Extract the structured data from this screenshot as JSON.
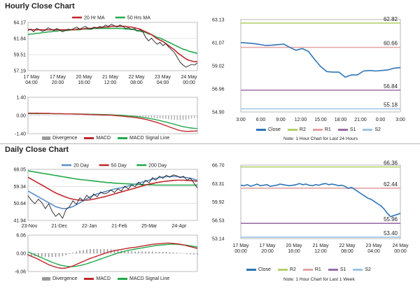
{
  "hourly_section": {
    "title": "Hourly Close Chart"
  },
  "daily_section": {
    "title": "Daily Close Chart"
  },
  "colors": {
    "price": "#1f1f1f",
    "ma_short": "#c0262b",
    "ma_long": "#22a94b",
    "macd": "#c0262b",
    "signal": "#22a94b",
    "divergence": "#9a9a9a",
    "close_blue": "#2e75b6",
    "r2": "#b5cf6b",
    "r1": "#e3a3a3",
    "s1": "#9b6ea6",
    "s2": "#9dc3e6",
    "ma20_day": "#5b8ec9",
    "grid": "#c8c8c8"
  },
  "chart_data": [
    {
      "id": "hourly_price",
      "type": "line",
      "title": "",
      "legend": [
        "20 Hr MA",
        "50 Hrs MA"
      ],
      "y_ticks": [
        "64.17",
        "61.84",
        "59.51",
        "57.19"
      ],
      "ylim": [
        57.19,
        64.17
      ],
      "x_ticks": [
        "17 May\n04:00",
        "17 May\n20:00",
        "20 May\n16:00",
        "21 May\n12:00",
        "22 May\n08:00",
        "23 May\n04:00",
        "24 May\n00:00"
      ],
      "series": [
        {
          "name": "Close",
          "values": [
            63.0,
            63.2,
            62.8,
            63.3,
            63.1,
            62.9,
            63.0,
            63.4,
            63.2,
            63.0,
            63.3,
            63.1,
            62.8,
            63.0,
            63.2,
            63.1,
            63.3,
            63.5,
            63.2,
            63.4,
            63.6,
            63.3,
            63.2,
            63.5,
            63.3,
            63.6,
            63.4,
            63.8,
            63.6,
            63.9,
            63.7,
            63.5,
            63.8,
            63.6,
            63.3,
            63.4,
            63.1,
            63.3,
            62.9,
            63.1,
            62.8,
            62.0,
            61.5,
            61.9,
            61.4,
            61.0,
            61.3,
            60.8,
            61.1,
            60.6,
            60.2,
            59.8,
            59.1,
            58.4,
            58.0,
            57.7,
            57.9,
            58.1,
            58.0,
            58.3
          ]
        },
        {
          "name": "20 Hr MA",
          "values": [
            63.2,
            63.1,
            63.1,
            63.1,
            63.1,
            63.1,
            63.1,
            63.1,
            63.1,
            63.1,
            63.1,
            63.1,
            63.1,
            63.1,
            63.1,
            63.1,
            63.1,
            63.2,
            63.2,
            63.2,
            63.3,
            63.3,
            63.3,
            63.4,
            63.4,
            63.4,
            63.5,
            63.5,
            63.5,
            63.6,
            63.6,
            63.6,
            63.6,
            63.6,
            63.6,
            63.5,
            63.5,
            63.4,
            63.3,
            63.2,
            63.0,
            62.8,
            62.6,
            62.4,
            62.1,
            61.8,
            61.6,
            61.4,
            61.1,
            60.8,
            60.5,
            60.2,
            59.8,
            59.5,
            59.2,
            58.9,
            58.7,
            58.6,
            58.5,
            58.5
          ]
        },
        {
          "name": "50 Hrs MA",
          "values": [
            62.4,
            62.5,
            62.5,
            62.6,
            62.6,
            62.7,
            62.7,
            62.8,
            62.8,
            62.9,
            62.9,
            63.0,
            63.0,
            63.0,
            63.0,
            63.1,
            63.1,
            63.1,
            63.1,
            63.2,
            63.2,
            63.2,
            63.2,
            63.3,
            63.3,
            63.3,
            63.3,
            63.3,
            63.3,
            63.3,
            63.3,
            63.3,
            63.3,
            63.3,
            63.2,
            63.2,
            63.2,
            63.1,
            63.0,
            62.9,
            62.8,
            62.7,
            62.5,
            62.4,
            62.2,
            62.0,
            61.9,
            61.7,
            61.5,
            61.3,
            61.1,
            60.9,
            60.7,
            60.5,
            60.3,
            60.2,
            60.0,
            59.9,
            59.8,
            59.7
          ]
        }
      ]
    },
    {
      "id": "hourly_macd",
      "type": "line",
      "legend": [
        "Divergence",
        "MACD",
        "MACD Signal Line"
      ],
      "y_ticks": [
        "1.40",
        "0.00",
        "-1.40"
      ],
      "ylim": [
        -1.4,
        1.4
      ],
      "series": [
        {
          "name": "MACD",
          "values": [
            0.18,
            0.18,
            0.17,
            0.18,
            0.17,
            0.16,
            0.16,
            0.16,
            0.15,
            0.14,
            0.14,
            0.14,
            0.13,
            0.12,
            0.12,
            0.12,
            0.11,
            0.1,
            0.1,
            0.09,
            0.08,
            0.08,
            0.07,
            0.06,
            0.06,
            0.05,
            0.04,
            0.04,
            0.03,
            0.02,
            0.0,
            -0.02,
            -0.04,
            -0.06,
            -0.08,
            -0.1,
            -0.12,
            -0.15,
            -0.18,
            -0.22,
            -0.26,
            -0.3,
            -0.36,
            -0.42,
            -0.48,
            -0.55,
            -0.62,
            -0.7,
            -0.78,
            -0.86,
            -0.94,
            -1.02,
            -1.1,
            -1.16,
            -1.2,
            -1.22,
            -1.22,
            -1.21,
            -1.2,
            -1.18
          ]
        },
        {
          "name": "MACD Signal Line",
          "values": [
            0.14,
            0.14,
            0.14,
            0.14,
            0.14,
            0.14,
            0.14,
            0.14,
            0.14,
            0.13,
            0.13,
            0.13,
            0.13,
            0.12,
            0.12,
            0.12,
            0.12,
            0.11,
            0.11,
            0.1,
            0.1,
            0.1,
            0.09,
            0.09,
            0.08,
            0.08,
            0.07,
            0.07,
            0.06,
            0.05,
            0.04,
            0.03,
            0.02,
            0.01,
            -0.01,
            -0.03,
            -0.05,
            -0.07,
            -0.09,
            -0.12,
            -0.15,
            -0.18,
            -0.22,
            -0.26,
            -0.3,
            -0.35,
            -0.4,
            -0.45,
            -0.5,
            -0.56,
            -0.62,
            -0.68,
            -0.74,
            -0.8,
            -0.86,
            -0.9,
            -0.94,
            -0.97,
            -0.99,
            -1.0
          ]
        }
      ]
    },
    {
      "id": "hourly_intraday",
      "type": "line",
      "y_ticks": [
        "63.13",
        "61.07",
        "59.02",
        "56.96",
        "54.90"
      ],
      "ylim": [
        54.9,
        63.13
      ],
      "x_ticks": [
        "3:00",
        "6:00",
        "9:00",
        "12:00",
        "15:00",
        "18:00",
        "21:00",
        "0:00",
        "3:00"
      ],
      "levels": [
        {
          "name": "R2",
          "value": 62.82,
          "label": "62.82"
        },
        {
          "name": "R1",
          "value": 60.66,
          "label": "60.66"
        },
        {
          "name": "S1",
          "value": 56.84,
          "label": "56.84"
        },
        {
          "name": "S2",
          "value": 55.18,
          "label": "55.18"
        }
      ],
      "legend": [
        "Close",
        "R2",
        "R1",
        "S1",
        "S2"
      ],
      "note": "Note: 1 Hour Chart for Last 24 Hours",
      "series": [
        {
          "name": "Close",
          "values": [
            61.08,
            61.05,
            61.0,
            60.92,
            60.82,
            60.85,
            60.9,
            60.95,
            60.65,
            60.4,
            60.55,
            60.3,
            59.6,
            58.95,
            58.5,
            58.45,
            58.45,
            58.0,
            58.2,
            58.2,
            58.55,
            58.6,
            58.55,
            58.6,
            58.65,
            58.8,
            58.85
          ]
        }
      ]
    },
    {
      "id": "daily_price",
      "type": "line",
      "legend": [
        "20 Day",
        "50 Day",
        "200 Day"
      ],
      "y_ticks": [
        "68.05",
        "59.34",
        "50.64",
        "41.94"
      ],
      "ylim": [
        41.94,
        68.05
      ],
      "x_ticks": [
        "23-Nov",
        "21-Dec",
        "22-Jan",
        "21-Feb",
        "25-Mar",
        "24-Apr"
      ],
      "series": [
        {
          "name": "Close",
          "values": [
            54.6,
            52.2,
            50.5,
            52.8,
            51.0,
            48.0,
            50.5,
            46.5,
            44.0,
            45.5,
            43.0,
            47.5,
            49.0,
            52.0,
            50.2,
            53.5,
            52.0,
            54.8,
            53.0,
            55.5,
            54.0,
            56.5,
            55.5,
            56.0,
            57.5,
            56.2,
            58.0,
            57.0,
            59.5,
            58.0,
            60.0,
            59.2,
            61.5,
            60.0,
            62.5,
            61.2,
            63.8,
            62.5,
            64.5,
            63.5,
            65.0,
            64.0,
            65.2,
            64.8,
            63.8,
            64.5,
            62.5,
            63.5,
            61.0,
            58.5
          ]
        },
        {
          "name": "20 Day",
          "values": [
            57.0,
            56.0,
            55.0,
            54.0,
            53.0,
            52.0,
            51.0,
            50.0,
            49.0,
            48.5,
            48.0,
            48.0,
            48.5,
            49.0,
            50.0,
            51.0,
            52.0,
            53.0,
            54.0,
            54.8,
            55.5,
            56.0,
            56.5,
            57.0,
            57.5,
            58.0,
            58.3,
            58.6,
            59.0,
            59.5,
            60.0,
            60.5,
            61.0,
            61.5,
            62.0,
            62.5,
            63.0,
            63.4,
            63.8,
            64.1,
            64.3,
            64.4,
            64.4,
            64.3,
            64.2,
            64.0,
            63.8,
            63.5,
            63.0,
            62.5
          ]
        },
        {
          "name": "50 Day",
          "values": [
            64.0,
            63.0,
            62.0,
            61.0,
            60.0,
            59.0,
            58.0,
            57.0,
            56.0,
            55.2,
            54.5,
            53.8,
            53.2,
            52.8,
            52.5,
            52.3,
            52.2,
            52.3,
            52.5,
            52.8,
            53.2,
            53.6,
            54.0,
            54.5,
            55.0,
            55.5,
            56.0,
            56.5,
            57.0,
            57.5,
            58.0,
            58.5,
            59.0,
            59.5,
            60.0,
            60.5,
            60.8,
            61.2,
            61.5,
            61.8,
            62.0,
            62.2,
            62.4,
            62.5,
            62.5,
            62.5,
            62.4,
            62.3,
            62.2,
            62.0
          ]
        },
        {
          "name": "200 Day",
          "values": [
            67.3,
            67.0,
            66.7,
            66.4,
            66.1,
            65.8,
            65.5,
            65.2,
            64.9,
            64.6,
            64.3,
            64.0,
            63.7,
            63.4,
            63.1,
            62.9,
            62.7,
            62.5,
            62.3,
            62.1,
            61.9,
            61.7,
            61.5,
            61.3,
            61.2,
            61.0,
            60.9,
            60.8,
            60.7,
            60.6,
            60.5,
            60.4,
            60.3,
            60.2,
            60.2,
            60.1,
            60.1,
            60.0,
            60.0,
            60.0,
            60.0,
            60.0,
            60.0,
            60.0,
            60.0,
            60.0,
            60.0,
            60.0,
            60.0,
            60.0
          ]
        }
      ]
    },
    {
      "id": "daily_macd",
      "type": "line",
      "legend": [
        "Divergence",
        "MACD",
        "MACD Signal Line"
      ],
      "y_ticks": [
        "6.06",
        "0.00",
        "-6.06"
      ],
      "ylim": [
        -6.06,
        6.06
      ],
      "series": [
        {
          "name": "MACD",
          "values": [
            -0.5,
            -1.0,
            -1.5,
            -2.0,
            -2.6,
            -3.2,
            -3.8,
            -4.2,
            -4.6,
            -4.9,
            -5.0,
            -4.9,
            -4.6,
            -4.2,
            -3.7,
            -3.2,
            -2.7,
            -2.2,
            -1.7,
            -1.3,
            -0.9,
            -0.5,
            -0.1,
            0.3,
            0.6,
            0.9,
            1.1,
            1.3,
            1.5,
            1.7,
            1.9,
            2.0,
            2.2,
            2.4,
            2.6,
            2.8,
            3.0,
            3.1,
            3.2,
            3.3,
            3.4,
            3.4,
            3.3,
            3.2,
            3.0,
            2.8,
            2.5,
            2.2,
            1.9,
            1.6
          ]
        },
        {
          "name": "MACD Signal Line",
          "values": [
            0.5,
            0.0,
            -0.5,
            -1.0,
            -1.5,
            -2.0,
            -2.5,
            -3.0,
            -3.4,
            -3.8,
            -4.1,
            -4.3,
            -4.4,
            -4.4,
            -4.3,
            -4.1,
            -3.8,
            -3.5,
            -3.1,
            -2.7,
            -2.3,
            -1.9,
            -1.5,
            -1.1,
            -0.7,
            -0.3,
            0.1,
            0.4,
            0.7,
            1.0,
            1.2,
            1.4,
            1.6,
            1.8,
            2.0,
            2.2,
            2.4,
            2.6,
            2.7,
            2.8,
            2.9,
            3.0,
            3.0,
            3.0,
            2.9,
            2.8,
            2.7,
            2.5,
            2.3,
            2.1
          ]
        }
      ]
    },
    {
      "id": "daily_intraday",
      "type": "line",
      "y_ticks": [
        "66.70",
        "63.31",
        "59.92",
        "56.53",
        "53.14"
      ],
      "ylim": [
        53.14,
        66.7
      ],
      "x_ticks": [
        "17 May\n00:00",
        "17 May\n20:00",
        "20 May\n16:00",
        "21 May\n12:00",
        "22 May\n08:00",
        "23 May\n04:00",
        "24 May\n00:00"
      ],
      "levels": [
        {
          "name": "R2",
          "value": 66.36,
          "label": "66.36"
        },
        {
          "name": "R1",
          "value": 62.44,
          "label": "62.44"
        },
        {
          "name": "S1",
          "value": 55.96,
          "label": "55.96"
        },
        {
          "name": "S2",
          "value": 53.4,
          "label": "53.40"
        }
      ],
      "legend": [
        "Close",
        "R2",
        "R1",
        "S1",
        "S2"
      ],
      "note": "Note: 1 Hour Chart for Last 1 Week",
      "series": [
        {
          "name": "Close",
          "values": [
            63.0,
            62.9,
            63.1,
            62.8,
            63.0,
            63.2,
            62.9,
            63.0,
            63.1,
            62.8,
            62.9,
            63.0,
            63.2,
            63.1,
            63.0,
            62.9,
            63.0,
            63.1,
            63.3,
            63.1,
            63.2,
            63.0,
            62.9,
            63.1,
            63.0,
            63.2,
            63.3,
            63.1,
            63.2,
            63.1,
            62.9,
            63.0,
            62.8,
            62.4,
            62.6,
            62.2,
            61.8,
            61.4,
            61.0,
            60.6,
            60.4,
            60.0,
            59.6,
            59.2,
            58.6,
            57.8,
            57.2,
            57.4,
            57.6,
            57.8
          ]
        }
      ]
    }
  ]
}
